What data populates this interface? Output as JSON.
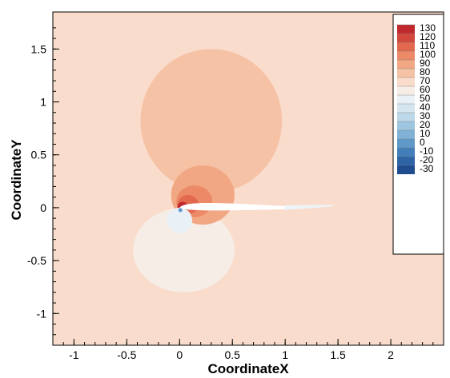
{
  "chart_data": {
    "type": "heatmap",
    "subtype": "contour",
    "title": "",
    "xlabel": "CoordinateX",
    "ylabel": "CoordinateY",
    "xlim": [
      -1.2,
      2.5
    ],
    "ylim": [
      -1.3,
      1.85
    ],
    "x_ticks": [
      -1,
      -0.5,
      0,
      0.5,
      1,
      1.5,
      2
    ],
    "x_tick_labels": [
      "-1",
      "-0.5",
      "0",
      "0.5",
      "1",
      "1.5",
      "2"
    ],
    "y_ticks": [
      -1,
      -0.5,
      0,
      0.5,
      1,
      1.5
    ],
    "y_tick_labels": [
      "-1",
      "-0.5",
      "0",
      "0.5",
      "1",
      "1.5"
    ],
    "legend": {
      "placement": "top-right",
      "levels": [
        130,
        120,
        110,
        100,
        90,
        80,
        70,
        60,
        50,
        40,
        30,
        20,
        10,
        0,
        -10,
        -20,
        -30
      ],
      "labels": [
        "130",
        "120",
        "110",
        "100",
        "90",
        "80",
        "70",
        "60",
        "50",
        "40",
        "30",
        "20",
        "10",
        "0",
        "-10",
        "-20",
        "-30"
      ],
      "colors": [
        "#c0282e",
        "#d2483c",
        "#e2694e",
        "#ec8a67",
        "#f1a783",
        "#f6c2a6",
        "#f9dccb",
        "#f7ede7",
        "#eaf1f6",
        "#d6e6f0",
        "#bcd8e9",
        "#9fc6e0",
        "#80b1d6",
        "#5f99c9",
        "#427fba",
        "#2e64a6",
        "#1e4c8f"
      ]
    },
    "background_level": 70,
    "regions": [
      {
        "name": "upper-pressure-lobe",
        "level": 80,
        "center": [
          0.3,
          0.82
        ],
        "radii": [
          0.67,
          0.68
        ]
      },
      {
        "name": "lower-pressure-lobe",
        "level": 60,
        "center": [
          0.04,
          -0.4
        ],
        "radii": [
          0.48,
          0.4
        ]
      },
      {
        "name": "inner-lobe-90",
        "level": 90,
        "center": [
          0.22,
          0.12
        ],
        "radii": [
          0.3,
          0.28
        ]
      },
      {
        "name": "inner-lobe-100",
        "level": 100,
        "center": [
          0.14,
          0.06
        ],
        "radii": [
          0.17,
          0.15
        ]
      },
      {
        "name": "inner-lobe-110",
        "level": 110,
        "center": [
          0.08,
          0.03
        ],
        "radii": [
          0.1,
          0.09
        ]
      },
      {
        "name": "stagnation-peak",
        "level": 130,
        "center": [
          0.03,
          0.01
        ],
        "radii": [
          0.05,
          0.045
        ]
      },
      {
        "name": "near-nose-low",
        "level": 50,
        "center": [
          0.0,
          -0.12
        ],
        "radii": [
          0.12,
          0.12
        ]
      }
    ],
    "airfoil": {
      "leading_edge": [
        0.0,
        0.0
      ],
      "trailing_edge": [
        1.0,
        0.0
      ],
      "wake_end": [
        1.45,
        0.02
      ],
      "level": 50
    }
  }
}
